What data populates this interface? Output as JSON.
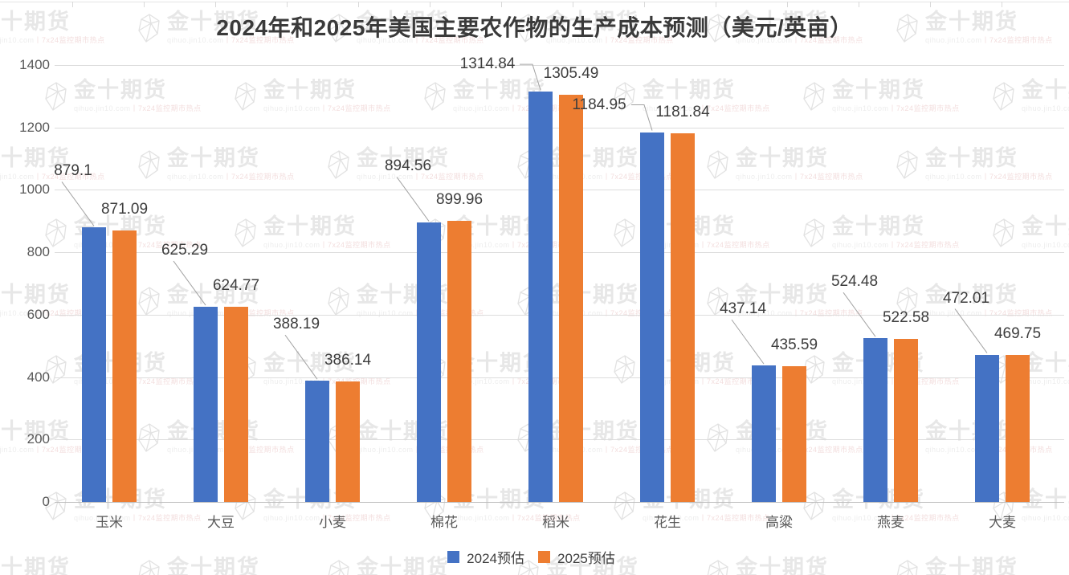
{
  "title": "2024年和2025年美国主要农作物的生产成本预测（美元/英亩）",
  "chart_data": {
    "type": "bar",
    "title": "2024年和2025年美国主要农作物的生产成本预测（美元/英亩）",
    "categories": [
      "玉米",
      "大豆",
      "小麦",
      "棉花",
      "稻米",
      "花生",
      "高粱",
      "燕麦",
      "大麦"
    ],
    "series": [
      {
        "name": "2024预估",
        "color": "#4472C4",
        "values": [
          879.1,
          625.29,
          388.19,
          894.56,
          1314.84,
          1184.95,
          437.14,
          524.48,
          472.01
        ]
      },
      {
        "name": "2025预估",
        "color": "#ED7D31",
        "values": [
          871.09,
          624.77,
          386.14,
          899.96,
          1305.49,
          1181.84,
          435.59,
          522.58,
          469.75
        ]
      }
    ],
    "ylim": [
      0,
      1400
    ],
    "yticks": [
      0,
      200,
      400,
      600,
      800,
      1000,
      1200,
      1400
    ],
    "grid": true,
    "data_labels": true,
    "legend_position": "bottom",
    "xlabel": "",
    "ylabel": ""
  },
  "legend": {
    "items": [
      {
        "label": "2024预估",
        "color": "#4472C4"
      },
      {
        "label": "2025预估",
        "color": "#ED7D31"
      }
    ]
  },
  "watermark": {
    "brand": "金十期货",
    "subtext_left": "qihuo.jin10.com",
    "subtext_right": "丨7x24监控期市热点",
    "icon": "gem-icon"
  },
  "colors": {
    "series_2024": "#4472C4",
    "series_2025": "#ED7D31",
    "gridline": "#dcdcdc",
    "axis_text": "#595959",
    "label_text": "#3d3d3d",
    "background": "#ffffff"
  }
}
